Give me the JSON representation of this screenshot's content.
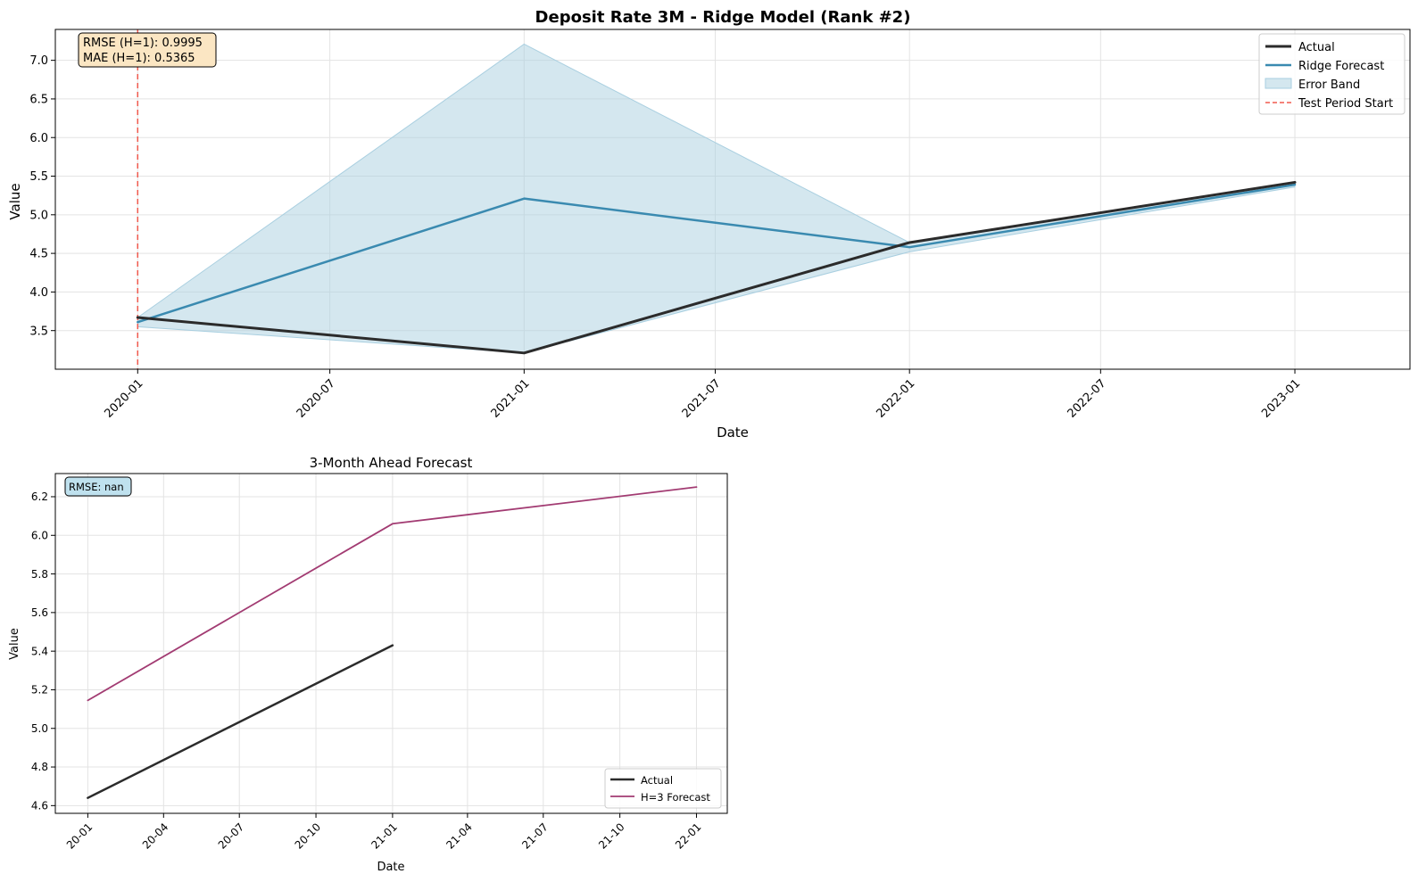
{
  "chart_data": [
    {
      "type": "line",
      "title": "Deposit Rate 3M - Ridge Model (Rank #2)",
      "xlabel": "Date",
      "ylabel": "Value",
      "xlim": [
        "2019-10-15",
        "2023-04-20"
      ],
      "ylim": [
        3.0,
        7.4
      ],
      "x_ticks": [
        "2020-01",
        "2020-07",
        "2021-01",
        "2021-07",
        "2022-01",
        "2022-07",
        "2023-01"
      ],
      "y_ticks": [
        "3.5",
        "4.0",
        "4.5",
        "5.0",
        "5.5",
        "6.0",
        "6.5",
        "7.0"
      ],
      "grid": true,
      "legend_position": "top-right",
      "series": [
        {
          "name": "Actual",
          "color": "#2b2b2b",
          "x": [
            "2020-01-01",
            "2021-01-01",
            "2022-01-01",
            "2023-01-01"
          ],
          "values": [
            3.67,
            3.21,
            4.64,
            5.42
          ]
        },
        {
          "name": "Ridge Forecast",
          "color": "#3a8ab0",
          "x": [
            "2020-01-01",
            "2021-01-01",
            "2022-01-01",
            "2023-01-01"
          ],
          "values": [
            3.61,
            5.21,
            4.58,
            5.39
          ]
        }
      ],
      "band": {
        "name": "Error Band",
        "color": "#a9cfe0",
        "x": [
          "2020-01-01",
          "2021-01-01",
          "2022-01-01",
          "2023-01-01"
        ],
        "lower": [
          3.55,
          3.21,
          4.52,
          5.36
        ],
        "upper": [
          3.67,
          7.21,
          4.64,
          5.42
        ]
      },
      "vline": {
        "name": "Test Period Start",
        "x": "2020-01-01",
        "color": "#f05a4f"
      },
      "stats": [
        "RMSE (H=1): 0.9995",
        "MAE (H=1): 0.5365"
      ]
    },
    {
      "type": "line",
      "title": "3-Month Ahead Forecast",
      "xlabel": "Date",
      "ylabel": "Value",
      "xlim": [
        "2019-11-23",
        "2022-02-07"
      ],
      "ylim": [
        4.56,
        6.32
      ],
      "x_ticks": [
        "20-01",
        "20-04",
        "20-07",
        "20-10",
        "21-01",
        "21-04",
        "21-07",
        "21-10",
        "22-01"
      ],
      "y_ticks": [
        "4.6",
        "4.8",
        "5.0",
        "5.2",
        "5.4",
        "5.6",
        "5.8",
        "6.0",
        "6.2"
      ],
      "grid": true,
      "legend_position": "bottom-right",
      "series": [
        {
          "name": "Actual",
          "color": "#2b2b2b",
          "x": [
            "2020-01-01",
            "2021-01-01"
          ],
          "values": [
            4.64,
            5.43
          ]
        },
        {
          "name": "H=3 Forecast",
          "color": "#a23b72",
          "x": [
            "2020-01-01",
            "2021-01-01",
            "2022-01-01"
          ],
          "values": [
            5.145,
            6.06,
            6.25
          ]
        }
      ],
      "stats": [
        "RMSE: nan"
      ]
    }
  ]
}
